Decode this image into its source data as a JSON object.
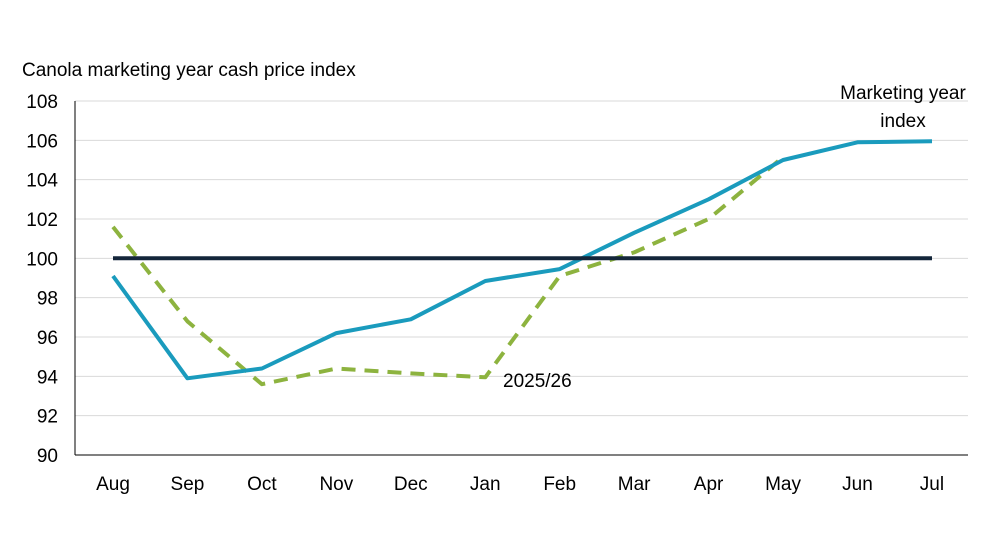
{
  "chart_data": {
    "type": "line",
    "ylabel": "Canola marketing year cash price index",
    "categories": [
      "Aug",
      "Sep",
      "Oct",
      "Nov",
      "Dec",
      "Jan",
      "Feb",
      "Mar",
      "Apr",
      "May",
      "Jun",
      "Jul"
    ],
    "ylim": [
      90,
      108
    ],
    "yticks": [
      90,
      92,
      94,
      96,
      98,
      100,
      102,
      104,
      106,
      108
    ],
    "grid": true,
    "series": [
      {
        "name": "Marketing year index",
        "color": "#1a9bbd",
        "style": "solid",
        "values": [
          99.1,
          93.9,
          94.4,
          96.2,
          96.9,
          98.85,
          99.45,
          101.3,
          103.0,
          105.0,
          105.9,
          105.95
        ]
      },
      {
        "name": "2025/26",
        "color": "#8db33f",
        "style": "dashed",
        "values": [
          101.6,
          96.8,
          93.6,
          94.4,
          94.15,
          93.95,
          99.1,
          100.3,
          102.0,
          105.15,
          null,
          null
        ]
      },
      {
        "name": "",
        "color": "#14263a",
        "style": "solid",
        "values": [
          100,
          100,
          100,
          100,
          100,
          100,
          100,
          100,
          100,
          100,
          100,
          100
        ]
      }
    ],
    "annotations": [
      {
        "text_lines": [
          "Marketing year",
          "index"
        ],
        "series": "Marketing year index"
      },
      {
        "text": "2025/26",
        "series": "2025/26"
      }
    ]
  }
}
